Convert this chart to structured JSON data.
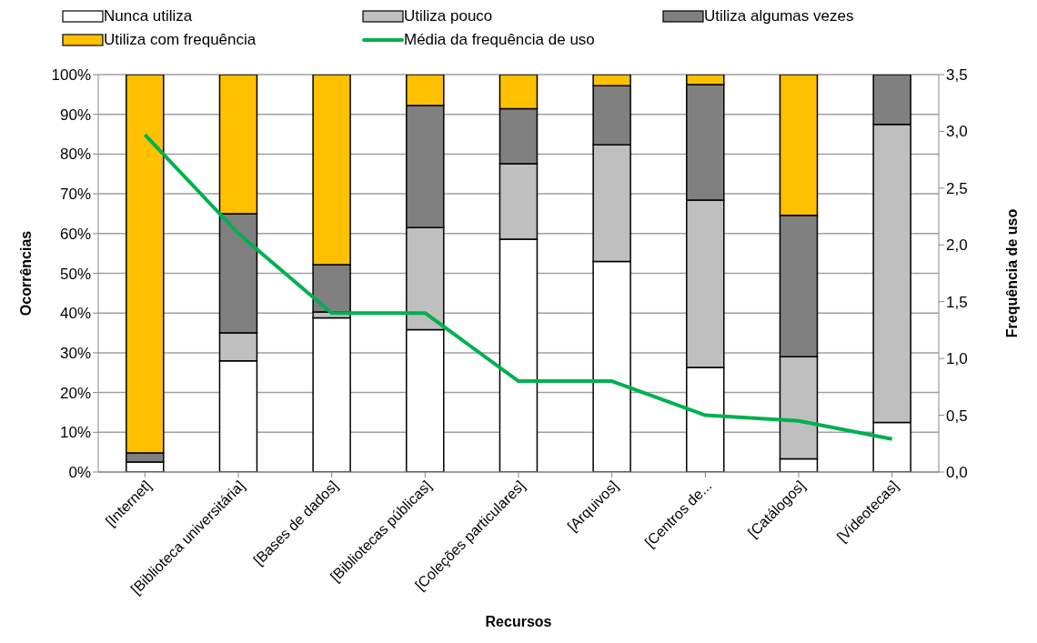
{
  "chart_data": {
    "type": "bar",
    "stacked": true,
    "xlabel": "Recursos",
    "ylabel": "Ocorrências",
    "y2label": "Frequência de uso",
    "categories": [
      "[Internet]",
      "[Biblioteca universitária]",
      "[Bases de dados]",
      "[Bibliotecas públicas]",
      "[Coleções particulares]",
      "[Arquivos]",
      "[Centros de...",
      "[Catálogos]",
      "[Videotecas]"
    ],
    "series": [
      {
        "name": "Nunca utiliza",
        "color": "#ffffff",
        "values": [
          2.5,
          28,
          38.8,
          35.8,
          58.6,
          53,
          26.3,
          3.3,
          12.5
        ]
      },
      {
        "name": "Utiliza pouco",
        "color": "#bfbfbf",
        "values": [
          0,
          7,
          1.5,
          25.7,
          19,
          29.3,
          42.1,
          25.7,
          75
        ]
      },
      {
        "name": "Utiliza algumas vezes",
        "color": "#808080",
        "values": [
          2.3,
          30,
          11.9,
          30.7,
          13.8,
          14.9,
          29.1,
          35.6,
          12.5
        ]
      },
      {
        "name": "Utiliza com frequência",
        "color": "#ffc000",
        "values": [
          95.2,
          35,
          47.8,
          7.8,
          8.6,
          2.8,
          2.5,
          35.4,
          0
        ]
      },
      {
        "name": "Média da frequência de uso",
        "type": "line",
        "axis": "y2",
        "color": "#00b050",
        "values": [
          2.97,
          2.1,
          1.4,
          1.4,
          0.8,
          0.8,
          0.5,
          0.45,
          0.29
        ]
      }
    ],
    "ylim": [
      0,
      100
    ],
    "yticks": [
      {
        "value": 0,
        "label": "0%"
      },
      {
        "value": 10,
        "label": "10%"
      },
      {
        "value": 20,
        "label": "20%"
      },
      {
        "value": 30,
        "label": "30%"
      },
      {
        "value": 40,
        "label": "40%"
      },
      {
        "value": 50,
        "label": "50%"
      },
      {
        "value": 60,
        "label": "60%"
      },
      {
        "value": 70,
        "label": "70%"
      },
      {
        "value": 80,
        "label": "80%"
      },
      {
        "value": 90,
        "label": "90%"
      },
      {
        "value": 100,
        "label": "100%"
      }
    ],
    "y2lim": [
      0,
      3.5
    ],
    "y2ticks": [
      {
        "value": 0,
        "label": "0,0"
      },
      {
        "value": 0.5,
        "label": "0,5"
      },
      {
        "value": 1,
        "label": "1,0"
      },
      {
        "value": 1.5,
        "label": "1,5"
      },
      {
        "value": 2,
        "label": "2,0"
      },
      {
        "value": 2.5,
        "label": "2,5"
      },
      {
        "value": 3,
        "label": "3,0"
      },
      {
        "value": 3.5,
        "label": "3,5"
      }
    ],
    "grid": "y",
    "legend": "top",
    "marker": "none"
  }
}
